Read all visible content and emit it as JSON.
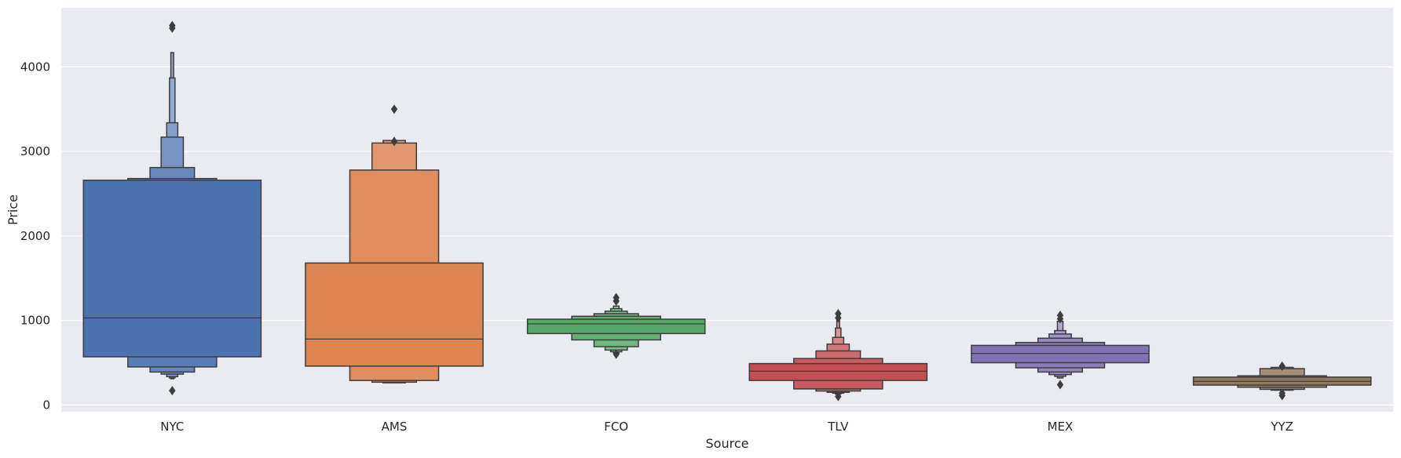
{
  "chart_data": {
    "type": "boxen",
    "xlabel": "Source",
    "ylabel": "Price",
    "categories": [
      "NYC",
      "AMS",
      "FCO",
      "TLV",
      "MEX",
      "YYZ"
    ],
    "ylim": [
      -80,
      4700
    ],
    "yticks": [
      0,
      1000,
      2000,
      3000,
      4000
    ],
    "grid": true,
    "background": "#eaeaf2",
    "edge_color": "#3d3d3d",
    "series": [
      {
        "category": "NYC",
        "color": "#4c72b0",
        "median": 1030,
        "levels": [
          [
            570,
            2660
          ],
          [
            450,
            2680
          ],
          [
            390,
            2810
          ],
          [
            365,
            3170
          ],
          [
            335,
            3340
          ],
          [
            320,
            3870
          ],
          [
            310,
            4170
          ]
        ],
        "outliers": [
          170,
          4490,
          4460
        ]
      },
      {
        "category": "AMS",
        "color": "#dd8452",
        "median": 780,
        "levels": [
          [
            460,
            1680
          ],
          [
            290,
            2780
          ],
          [
            270,
            3100
          ],
          [
            262,
            3130
          ]
        ],
        "outliers": [
          3500,
          3120
        ]
      },
      {
        "category": "FCO",
        "color": "#55a868",
        "median": 960,
        "levels": [
          [
            845,
            1015
          ],
          [
            770,
            1050
          ],
          [
            690,
            1080
          ],
          [
            650,
            1110
          ],
          [
            630,
            1140
          ],
          [
            615,
            1170
          ]
        ],
        "outliers": [
          600,
          1230,
          1270
        ]
      },
      {
        "category": "TLV",
        "color": "#c44e52",
        "median": 400,
        "levels": [
          [
            290,
            490
          ],
          [
            190,
            550
          ],
          [
            165,
            640
          ],
          [
            150,
            720
          ],
          [
            140,
            800
          ],
          [
            130,
            910
          ],
          [
            120,
            1000
          ]
        ],
        "outliers": [
          100,
          1030,
          1080
        ]
      },
      {
        "category": "MEX",
        "color": "#8172b3",
        "median": 610,
        "levels": [
          [
            500,
            705
          ],
          [
            440,
            740
          ],
          [
            390,
            790
          ],
          [
            360,
            840
          ],
          [
            340,
            880
          ],
          [
            320,
            990
          ]
        ],
        "outliers": [
          240,
          1020,
          1060
        ]
      },
      {
        "category": "YYZ",
        "color": "#937860",
        "median": 280,
        "levels": [
          [
            235,
            330
          ],
          [
            210,
            345
          ],
          [
            185,
            430
          ],
          [
            175,
            445
          ]
        ],
        "outliers": [
          110,
          140,
          460
        ]
      }
    ]
  }
}
